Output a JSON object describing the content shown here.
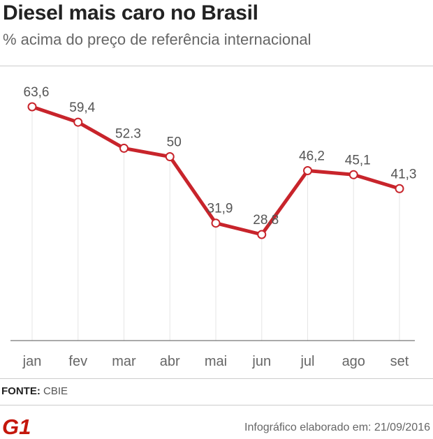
{
  "title": "Diesel mais caro no Brasil",
  "subtitle": "% acima do preço de referência internacional",
  "source": {
    "label": "FONTE:",
    "value": "CBIE"
  },
  "footer": {
    "note": "Infográfico elaborado em: 21/09/2016",
    "logo_text": "G1"
  },
  "colors": {
    "line": "#c8242b",
    "text": "#555555",
    "grid": "#e6e6e6",
    "logo": "#c4170c"
  },
  "chart_data": {
    "type": "line",
    "title": "Diesel mais caro no Brasil",
    "subtitle": "% acima do preço de referência internacional",
    "categories": [
      "jan",
      "fev",
      "mar",
      "abr",
      "mai",
      "jun",
      "jul",
      "ago",
      "set"
    ],
    "values": [
      63.6,
      59.4,
      52.3,
      50,
      31.9,
      28.8,
      46.2,
      45.1,
      41.3
    ],
    "labels": [
      "63,6",
      "59,4",
      "52.3",
      "50",
      "31,9",
      "28,8",
      "46,2",
      "45,1",
      "41,3"
    ],
    "ylim": [
      0,
      66
    ],
    "grid": "vertical",
    "xlabel": "",
    "ylabel": ""
  }
}
